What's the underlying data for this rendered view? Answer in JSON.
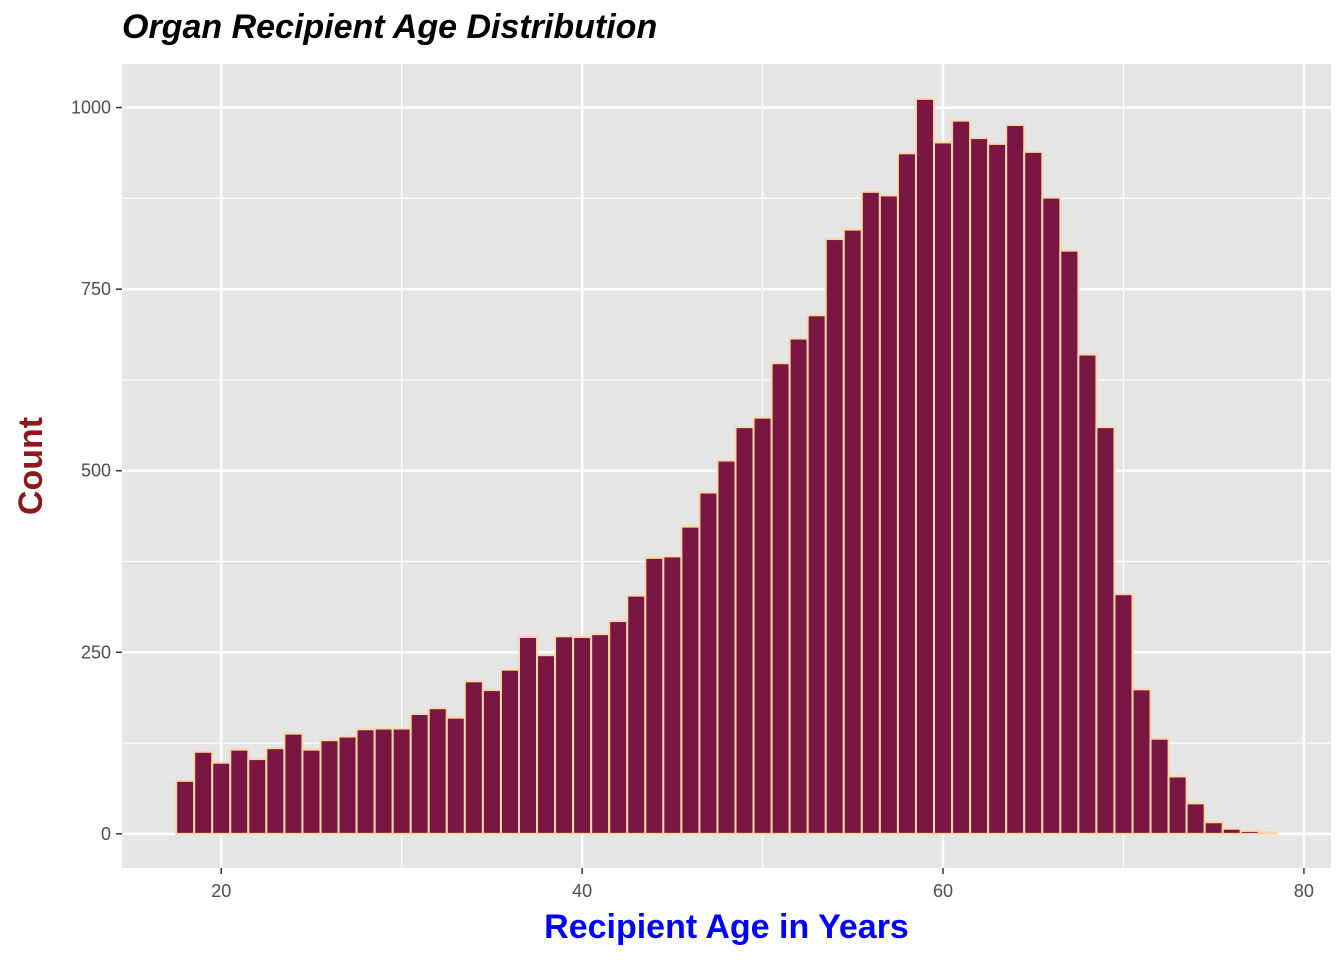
{
  "chart_data": {
    "type": "histogram",
    "title": "Organ Recipient Age Distribution",
    "xlabel": "Recipient Age in Years",
    "ylabel": "Count",
    "xlim": [
      14.5,
      81.5
    ],
    "ylim": [
      -47,
      1060
    ],
    "x_ticks": [
      20,
      40,
      60,
      80
    ],
    "y_ticks": [
      0,
      250,
      500,
      750,
      1000
    ],
    "grid": true,
    "legend": "none",
    "bin_width": 1,
    "bin_starts": [
      17.5,
      18.5,
      19.5,
      20.5,
      21.5,
      22.5,
      23.5,
      24.5,
      25.5,
      26.5,
      27.5,
      28.5,
      29.5,
      30.5,
      31.5,
      32.5,
      33.5,
      34.5,
      35.5,
      36.5,
      37.5,
      38.5,
      39.5,
      40.5,
      41.5,
      42.5,
      43.5,
      44.5,
      45.5,
      46.5,
      47.5,
      48.5,
      49.5,
      50.5,
      51.5,
      52.5,
      53.5,
      54.5,
      55.5,
      56.5,
      57.5,
      58.5,
      59.5,
      60.5,
      61.5,
      62.5,
      63.5,
      64.5,
      65.5,
      66.5,
      67.5,
      68.5,
      69.5,
      70.5,
      71.5,
      72.5,
      73.5,
      74.5,
      75.5,
      76.5,
      77.5
    ],
    "values": [
      73,
      113,
      98,
      116,
      103,
      118,
      138,
      116,
      129,
      134,
      144,
      145,
      145,
      165,
      173,
      160,
      210,
      198,
      226,
      271,
      246,
      272,
      271,
      275,
      293,
      328,
      380,
      382,
      423,
      470,
      514,
      560,
      573,
      648,
      682,
      714,
      819,
      832,
      884,
      879,
      937,
      1012,
      952,
      982,
      958,
      950,
      976,
      939,
      876,
      803,
      660,
      560,
      330,
      199,
      131,
      79,
      42,
      16,
      7,
      4,
      2
    ],
    "colors": {
      "panel_background": "#E5E5E5",
      "grid": "#FFFFFF",
      "bar_fill": "#7A1642",
      "bar_outline": "#F8D8A8",
      "xlabel_color": "#0000FF",
      "ylabel_color": "#8B1A1A",
      "title_color": "#000000"
    }
  }
}
